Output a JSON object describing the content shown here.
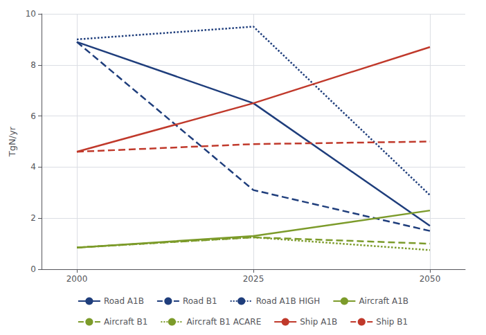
{
  "chart_data": {
    "type": "line",
    "ylabel": "TgN/yr",
    "x": [
      2000,
      2025,
      2050
    ],
    "series": [
      {
        "name": "Road A1B",
        "color": "#1F3E7C",
        "line_style": "solid",
        "values": [
          8.9,
          6.5,
          1.7
        ]
      },
      {
        "name": "Road B1",
        "color": "#1F3E7C",
        "line_style": "dashed",
        "values": [
          8.9,
          3.1,
          1.5
        ]
      },
      {
        "name": "Road A1B HIGH",
        "color": "#1F3E7C",
        "line_style": "dotted",
        "values": [
          9.0,
          9.5,
          2.9
        ]
      },
      {
        "name": "Aircraft A1B",
        "color": "#7C9B2A",
        "line_style": "solid",
        "values": [
          0.85,
          1.3,
          2.3
        ]
      },
      {
        "name": "Aircraft B1",
        "color": "#7C9B2A",
        "line_style": "dashed",
        "values": [
          0.85,
          1.25,
          1.0
        ]
      },
      {
        "name": "Aircraft B1 ACARE",
        "color": "#7C9B2A",
        "line_style": "dotted",
        "values": [
          0.85,
          1.25,
          0.75
        ]
      },
      {
        "name": "Ship A1B",
        "color": "#C0392B",
        "line_style": "solid",
        "values": [
          4.6,
          6.5,
          8.7
        ]
      },
      {
        "name": "Ship B1",
        "color": "#C0392B",
        "line_style": "dashed",
        "values": [
          4.6,
          4.9,
          5.0
        ]
      }
    ],
    "xlim": [
      1995,
      2055
    ],
    "xticks": [
      2000,
      2025,
      2050
    ],
    "ylim": [
      0,
      10
    ],
    "yticks": [
      0,
      2,
      4,
      6,
      8,
      10
    ],
    "grid": true,
    "legend": "bottom"
  }
}
